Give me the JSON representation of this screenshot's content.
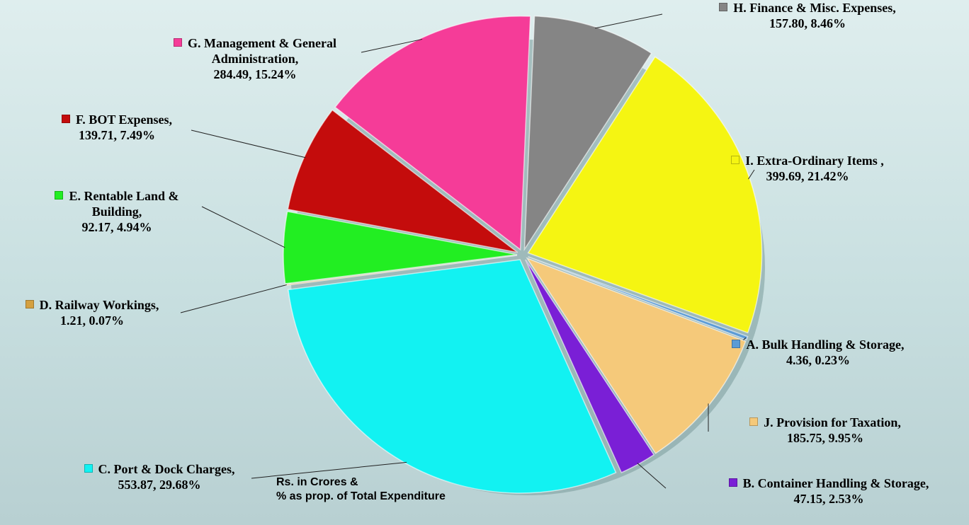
{
  "chart_data": {
    "type": "pie",
    "categories": [
      "A.  Bulk Handling & Storage,",
      "J. Provision for Taxation,",
      "B.  Container Handling & Storage,",
      "C.  Port & Dock Charges,",
      "D.  Railway Workings,",
      "E.  Rentable Land & Building,",
      "F.  BOT Expenses,",
      "G. Management & General Administration,",
      "H. Finance & Misc. Expenses,",
      "I.  Extra-Ordinary Items ,"
    ],
    "values": [
      4.36,
      185.75,
      47.15,
      553.87,
      1.21,
      92.17,
      139.71,
      284.49,
      157.8,
      399.69
    ],
    "value_labels": [
      "4.36, 0.23%",
      "185.75, 9.95%",
      "47.15, 2.53%",
      "553.87, 29.68%",
      "1.21, 0.07%",
      "92.17, 4.94%",
      "139.71, 7.49%",
      "284.49, 15.24%",
      "157.80, 8.46%",
      "399.69, 21.42%"
    ],
    "colors": [
      "#5b9bd5",
      "#f5c97a",
      "#7a1fd6",
      "#12f2f2",
      "#d4a040",
      "#22ee22",
      "#c40c0c",
      "#f53c98",
      "#858585",
      "#f5f512"
    ],
    "note": [
      "Rs. in Crores &",
      "% as prop. of Total  Expenditure"
    ]
  }
}
